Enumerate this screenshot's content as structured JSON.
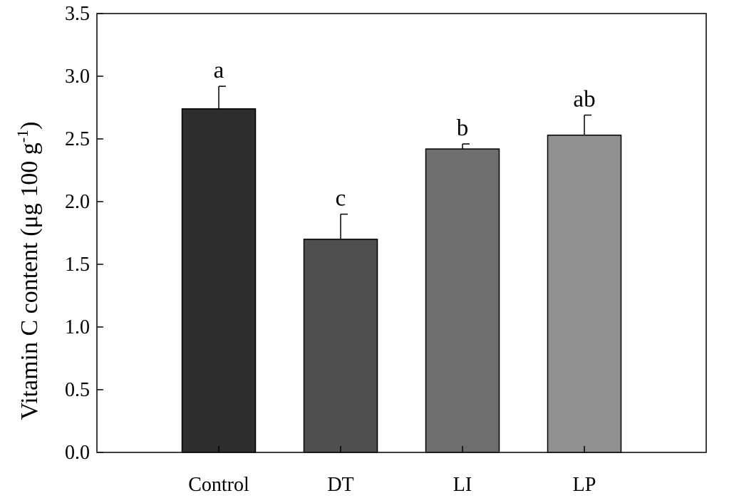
{
  "chart_data": {
    "type": "bar",
    "title": "",
    "xlabel": "",
    "ylabel": {
      "main": "Vitamin C content (μg 100 g",
      "sup": "-1",
      "close": ")"
    },
    "ylim": [
      0,
      3.5
    ],
    "yticks": [
      "0.0",
      "0.5",
      "1.0",
      "1.5",
      "2.0",
      "2.5",
      "3.0",
      "3.5"
    ],
    "categories": [
      "Control",
      "DT",
      "LI",
      "LP"
    ],
    "values": [
      2.74,
      1.7,
      2.42,
      2.53
    ],
    "errors": [
      0.18,
      0.2,
      0.04,
      0.16
    ],
    "significance_letters": [
      "a",
      "c",
      "b",
      "ab"
    ],
    "bar_colors": [
      "#2e2e2e",
      "#4f4f4f",
      "#6e6e6e",
      "#909090"
    ],
    "grid": false,
    "legend": "none"
  }
}
